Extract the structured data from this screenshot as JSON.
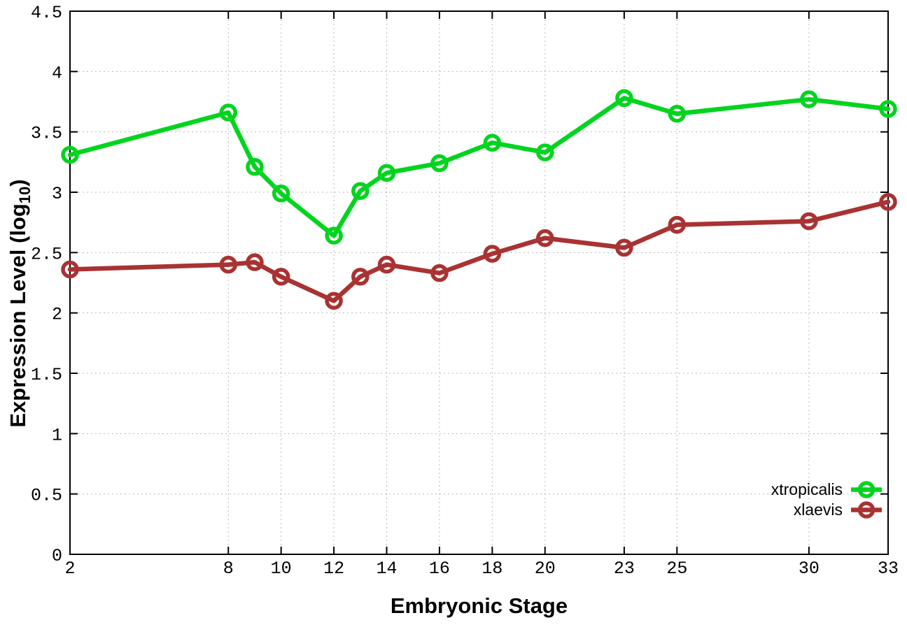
{
  "chart_data": {
    "type": "line",
    "title": "",
    "xlabel": "Embryonic Stage",
    "ylabel": {
      "prefix": "Expression Level (log",
      "sub": "10",
      "suffix": ")"
    },
    "x": [
      2,
      8,
      9,
      10,
      12,
      13,
      14,
      16,
      18,
      20,
      23,
      25,
      30,
      33
    ],
    "xlim": [
      2,
      33
    ],
    "ylim": [
      0,
      4.5
    ],
    "xticks": [
      2,
      8,
      10,
      12,
      14,
      16,
      18,
      20,
      23,
      25,
      30,
      33
    ],
    "yticks": [
      "0",
      "0.5",
      "1",
      "1.5",
      "2",
      "2.5",
      "3",
      "3.5",
      "4",
      "4.5"
    ],
    "grid": true,
    "legend_position": "inside-bottom-right",
    "series": [
      {
        "name": "xtropicalis",
        "color": "#00d41e",
        "marker": "open-circle",
        "values": [
          3.31,
          3.66,
          3.21,
          2.99,
          2.64,
          3.01,
          3.16,
          3.24,
          3.41,
          3.33,
          3.78,
          3.65,
          3.77,
          3.69
        ]
      },
      {
        "name": "xlaevis",
        "color": "#a93232",
        "marker": "open-circle",
        "values": [
          2.36,
          2.4,
          2.42,
          2.3,
          2.1,
          2.3,
          2.4,
          2.33,
          2.49,
          2.62,
          2.54,
          2.73,
          2.76,
          2.92
        ]
      }
    ]
  }
}
